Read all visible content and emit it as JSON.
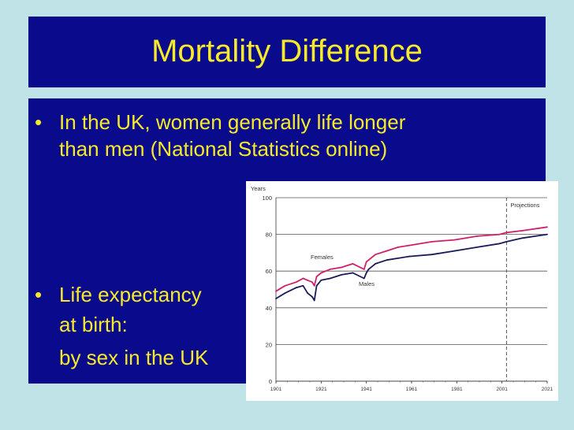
{
  "slide": {
    "title": "Mortality Difference",
    "bullets": [
      {
        "symbol": "•",
        "lines": [
          "In the UK, women generally life longer",
          "than men (National Statistics online)"
        ]
      },
      {
        "symbol": "•",
        "lines": [
          "Life expectancy",
          "at birth:",
          "by sex in the UK"
        ]
      }
    ]
  },
  "colors": {
    "slide_background": "#bfe3e6",
    "box_fill": "#0a0a8c",
    "text": "#f6ea2a",
    "females_line": "#d0206a",
    "males_line": "#1a1a5a"
  },
  "chart_data": {
    "type": "line",
    "ylabel": "Years",
    "ylim": [
      0,
      100
    ],
    "xlim": [
      1901,
      2021
    ],
    "y_ticks": [
      0,
      20,
      40,
      60,
      80,
      100
    ],
    "x_ticks": [
      1901,
      1921,
      1941,
      1961,
      1981,
      2001,
      2021
    ],
    "grid": true,
    "annotation": {
      "text": "Projections",
      "x": 2003
    },
    "series": [
      {
        "name": "Females",
        "x": [
          1901,
          1905,
          1910,
          1913,
          1915,
          1917,
          1918,
          1919,
          1921,
          1925,
          1930,
          1935,
          1940,
          1941,
          1942,
          1945,
          1950,
          1955,
          1960,
          1970,
          1980,
          1990,
          2000,
          2003,
          2010,
          2021
        ],
        "y": [
          49,
          52,
          54,
          56,
          55,
          54,
          52,
          57,
          59,
          61,
          62,
          64,
          61,
          65,
          66,
          69,
          71,
          73,
          74,
          76,
          77,
          79,
          80,
          81,
          82,
          84
        ]
      },
      {
        "name": "Males",
        "x": [
          1901,
          1905,
          1910,
          1913,
          1915,
          1917,
          1918,
          1919,
          1921,
          1925,
          1930,
          1935,
          1940,
          1941,
          1942,
          1945,
          1950,
          1955,
          1960,
          1970,
          1980,
          1990,
          2000,
          2003,
          2010,
          2021
        ],
        "y": [
          45,
          48,
          51,
          52,
          48,
          46,
          44,
          52,
          55,
          56,
          58,
          59,
          56,
          59,
          61,
          64,
          66,
          67,
          68,
          69,
          71,
          73,
          75,
          76,
          78,
          80
        ]
      }
    ]
  }
}
